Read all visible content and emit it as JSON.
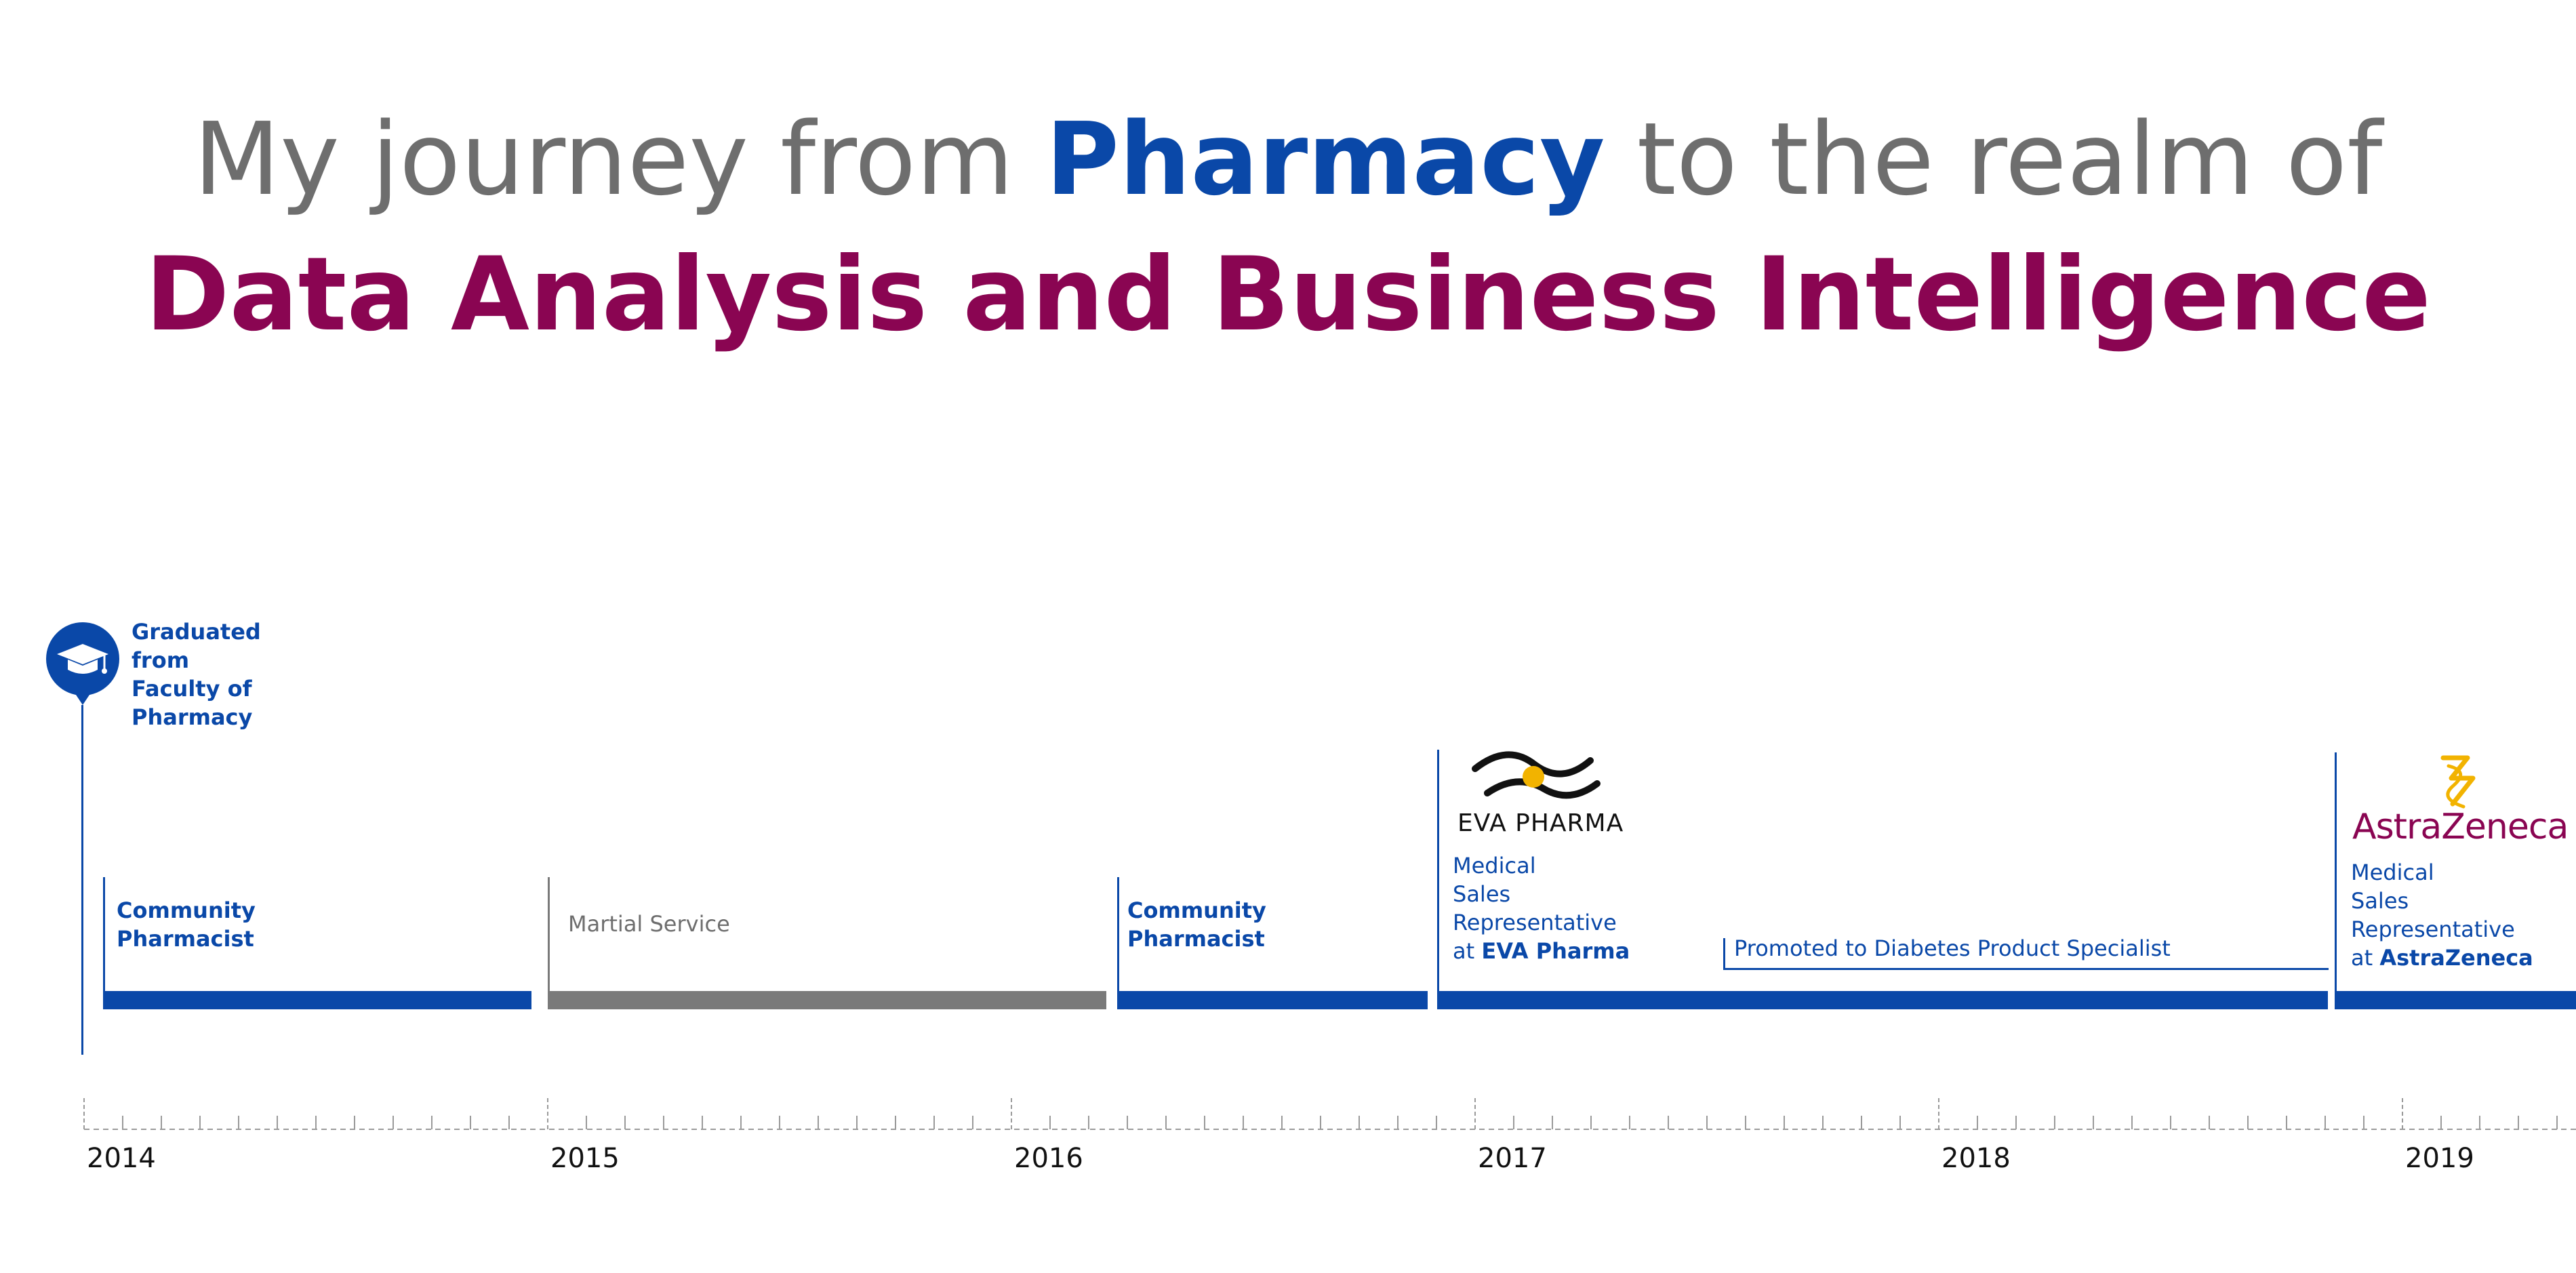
{
  "title": {
    "line1_before": "My journey from ",
    "line1_highlight": "Pharmacy",
    "line1_after": " to the realm of",
    "line2": "Data Analysis and Business Intelligence"
  },
  "milestone": {
    "lines": [
      "Graduated",
      "from",
      "Faculty of",
      "Pharmacy"
    ]
  },
  "segments": [
    {
      "label_lines": [
        "Community",
        "Pharmacist"
      ]
    },
    {
      "label": "Martial Service"
    },
    {
      "label_lines": [
        "Community",
        "Pharmacist"
      ]
    },
    {
      "logo_text": "EVA PHARMA",
      "label_lines": [
        "Medical",
        "Sales",
        "Representative"
      ],
      "at_prefix": "at ",
      "company": "EVA Pharma"
    },
    {
      "label": "Promoted to Diabetes Product Specialist"
    },
    {
      "logo_text": "AstraZeneca",
      "label_lines": [
        "Medical",
        "Sales",
        "Representative"
      ],
      "at_prefix": "at ",
      "company": "AstraZeneca"
    }
  ],
  "years": [
    "2014",
    "2015",
    "2016",
    "2017",
    "2018",
    "2019"
  ],
  "colors": {
    "blue": "#0a48a8",
    "magenta": "#8a0552",
    "gray": "#7a7a7a",
    "gold": "#f2b300"
  },
  "icons": {
    "milestone": "graduation-cap-icon"
  }
}
